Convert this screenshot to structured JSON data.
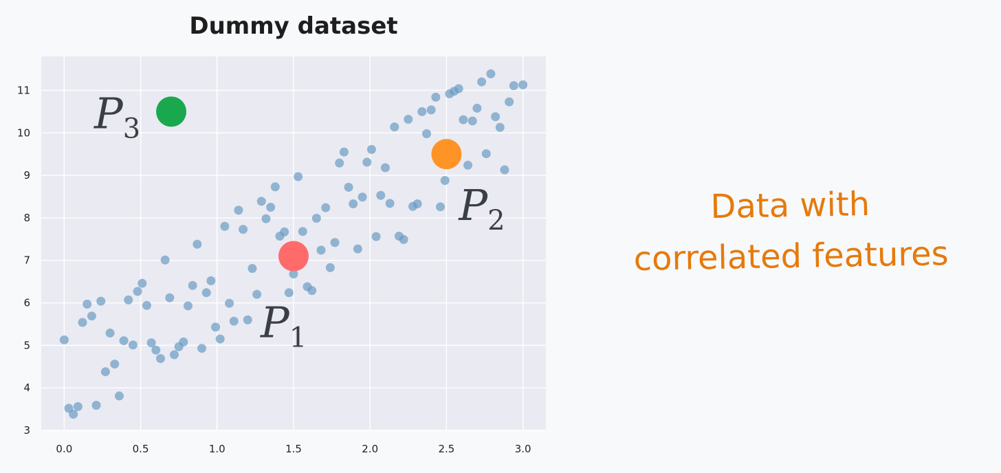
{
  "chart_data": {
    "type": "scatter",
    "title": "Dummy dataset",
    "xlabel": "",
    "ylabel": "",
    "xlim": [
      -0.15,
      3.15
    ],
    "ylim": [
      3,
      11.8
    ],
    "xticks": [
      "0.0",
      "0.5",
      "1.0",
      "1.5",
      "2.0",
      "2.5",
      "3.0"
    ],
    "yticks": [
      "3",
      "4",
      "5",
      "6",
      "7",
      "8",
      "9",
      "10",
      "11"
    ],
    "grid": true,
    "series": [
      {
        "color": "#6a9bc3",
        "points": [
          [
            0.0,
            5.13
          ],
          [
            0.03,
            3.52
          ],
          [
            0.06,
            3.38
          ],
          [
            0.09,
            3.56
          ],
          [
            0.12,
            5.54
          ],
          [
            0.15,
            5.97
          ],
          [
            0.18,
            5.69
          ],
          [
            0.21,
            3.59
          ],
          [
            0.24,
            6.04
          ],
          [
            0.27,
            4.38
          ],
          [
            0.3,
            5.29
          ],
          [
            0.33,
            4.56
          ],
          [
            0.36,
            3.81
          ],
          [
            0.39,
            5.11
          ],
          [
            0.42,
            6.07
          ],
          [
            0.45,
            5.01
          ],
          [
            0.48,
            6.27
          ],
          [
            0.51,
            6.46
          ],
          [
            0.54,
            5.94
          ],
          [
            0.57,
            5.06
          ],
          [
            0.6,
            4.89
          ],
          [
            0.63,
            4.69
          ],
          [
            0.66,
            7.01
          ],
          [
            0.69,
            6.12
          ],
          [
            0.72,
            4.78
          ],
          [
            0.75,
            4.97
          ],
          [
            0.78,
            5.08
          ],
          [
            0.81,
            5.93
          ],
          [
            0.84,
            6.41
          ],
          [
            0.87,
            7.38
          ],
          [
            0.9,
            4.93
          ],
          [
            0.93,
            6.24
          ],
          [
            0.96,
            6.52
          ],
          [
            0.99,
            5.43
          ],
          [
            1.02,
            5.15
          ],
          [
            1.05,
            7.8
          ],
          [
            1.08,
            5.99
          ],
          [
            1.11,
            5.57
          ],
          [
            1.14,
            8.18
          ],
          [
            1.17,
            7.73
          ],
          [
            1.2,
            5.6
          ],
          [
            1.23,
            6.81
          ],
          [
            1.26,
            6.2
          ],
          [
            1.29,
            8.39
          ],
          [
            1.32,
            7.98
          ],
          [
            1.35,
            8.25
          ],
          [
            1.38,
            8.73
          ],
          [
            1.41,
            7.57
          ],
          [
            1.44,
            7.67
          ],
          [
            1.47,
            6.24
          ],
          [
            1.5,
            6.68
          ],
          [
            1.53,
            8.97
          ],
          [
            1.56,
            7.68
          ],
          [
            1.59,
            6.38
          ],
          [
            1.62,
            6.29
          ],
          [
            1.65,
            7.99
          ],
          [
            1.68,
            7.24
          ],
          [
            1.71,
            8.24
          ],
          [
            1.74,
            6.83
          ],
          [
            1.77,
            7.42
          ],
          [
            1.8,
            9.29
          ],
          [
            1.83,
            9.55
          ],
          [
            1.86,
            8.72
          ],
          [
            1.89,
            8.33
          ],
          [
            1.92,
            7.27
          ],
          [
            1.95,
            8.49
          ],
          [
            1.98,
            9.31
          ],
          [
            2.01,
            9.61
          ],
          [
            2.04,
            7.56
          ],
          [
            2.07,
            8.53
          ],
          [
            2.1,
            9.18
          ],
          [
            2.13,
            8.34
          ],
          [
            2.16,
            10.14
          ],
          [
            2.19,
            7.57
          ],
          [
            2.22,
            7.49
          ],
          [
            2.25,
            10.32
          ],
          [
            2.28,
            8.27
          ],
          [
            2.31,
            8.33
          ],
          [
            2.34,
            10.5
          ],
          [
            2.37,
            9.98
          ],
          [
            2.4,
            10.54
          ],
          [
            2.43,
            10.84
          ],
          [
            2.46,
            8.26
          ],
          [
            2.49,
            8.88
          ],
          [
            2.52,
            10.92
          ],
          [
            2.55,
            10.98
          ],
          [
            2.58,
            11.04
          ],
          [
            2.61,
            10.31
          ],
          [
            2.64,
            9.24
          ],
          [
            2.67,
            10.28
          ],
          [
            2.7,
            10.58
          ],
          [
            2.73,
            11.2
          ],
          [
            2.76,
            9.51
          ],
          [
            2.79,
            11.39
          ],
          [
            2.82,
            10.38
          ],
          [
            2.85,
            10.13
          ],
          [
            2.88,
            9.13
          ],
          [
            2.91,
            10.73
          ],
          [
            2.94,
            11.11
          ],
          [
            3.0,
            11.13
          ]
        ]
      }
    ],
    "highlights": [
      {
        "label": "P",
        "sub": "1",
        "x": 1.5,
        "y": 7.1,
        "color": "#ff6b6b"
      },
      {
        "label": "P",
        "sub": "2",
        "x": 2.5,
        "y": 9.5,
        "color": "#ff9426"
      },
      {
        "label": "P",
        "sub": "3",
        "x": 0.7,
        "y": 10.5,
        "color": "#1aa84f"
      }
    ],
    "annotation": [
      "Data with",
      "correlated features"
    ]
  }
}
